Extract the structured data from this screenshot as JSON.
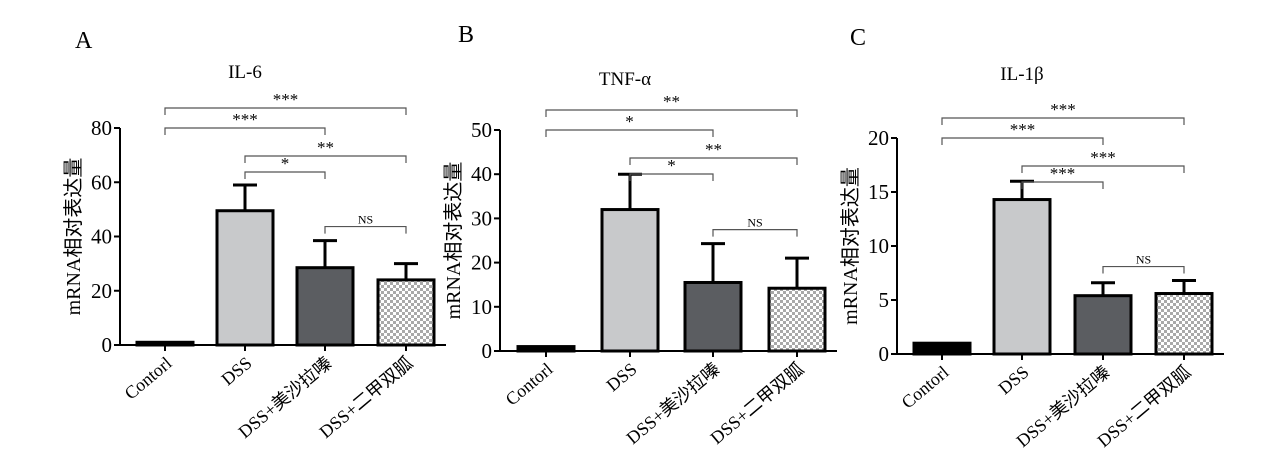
{
  "colors": {
    "control": "#000000",
    "dss": "#c8c9cb",
    "drug1": "#5b5d61",
    "drug2_a": "#bdbdbd",
    "drug2_b": "#ffffff",
    "stroke": "#000000",
    "bracket": "#555555"
  },
  "chart_data": [
    {
      "type": "bar",
      "panel_label": "A",
      "title": "IL-6",
      "ylabel": "mRNA相对表达量",
      "categories": [
        "Contorl",
        "DSS",
        "DSS+美沙拉嗪",
        "DSS+二甲双胍"
      ],
      "values": [
        1,
        49.5,
        28.5,
        24
      ],
      "error_upper": [
        1,
        59,
        38.5,
        30
      ],
      "ylim": [
        0,
        80
      ],
      "yticks": [
        0,
        20,
        40,
        60,
        80
      ],
      "significance": [
        {
          "from": 0,
          "to": 3,
          "label": "***",
          "level": 3
        },
        {
          "from": 0,
          "to": 2,
          "label": "***",
          "level": 2
        },
        {
          "from": 1,
          "to": 3,
          "label": "**",
          "level": 1
        },
        {
          "from": 1,
          "to": 2,
          "label": "*",
          "level": 0
        },
        {
          "from": 2,
          "to": 3,
          "label": "NS",
          "level": -1
        }
      ]
    },
    {
      "type": "bar",
      "panel_label": "B",
      "title": "TNF-α",
      "ylabel": "mRNA相对表达量",
      "categories": [
        "Contorl",
        "DSS",
        "DSS+美沙拉嗪",
        "DSS+二甲双胍"
      ],
      "values": [
        1,
        32,
        15.5,
        14.2
      ],
      "error_upper": [
        1,
        40,
        24.3,
        21
      ],
      "ylim": [
        0,
        50
      ],
      "yticks": [
        0,
        10,
        20,
        30,
        40,
        50
      ],
      "significance": [
        {
          "from": 0,
          "to": 3,
          "label": "**",
          "level": 3
        },
        {
          "from": 0,
          "to": 2,
          "label": "*",
          "level": 2
        },
        {
          "from": 1,
          "to": 3,
          "label": "**",
          "level": 1
        },
        {
          "from": 1,
          "to": 2,
          "label": "*",
          "level": 0
        },
        {
          "from": 2,
          "to": 3,
          "label": "NS",
          "level": -1
        }
      ]
    },
    {
      "type": "bar",
      "panel_label": "C",
      "title": "IL-1β",
      "ylabel": "mRNA相对表达量",
      "categories": [
        "Contorl",
        "DSS",
        "DSS+美沙拉嗪",
        "DSS+二甲双胍"
      ],
      "values": [
        1,
        14.3,
        5.4,
        5.6
      ],
      "error_upper": [
        1,
        16,
        6.6,
        6.8
      ],
      "ylim": [
        0,
        20
      ],
      "yticks": [
        0,
        5,
        10,
        15,
        20
      ],
      "significance": [
        {
          "from": 0,
          "to": 3,
          "label": "***",
          "level": 3
        },
        {
          "from": 0,
          "to": 2,
          "label": "***",
          "level": 2
        },
        {
          "from": 1,
          "to": 3,
          "label": "***",
          "level": 1
        },
        {
          "from": 1,
          "to": 2,
          "label": "***",
          "level": 0
        },
        {
          "from": 2,
          "to": 3,
          "label": "NS",
          "level": -1
        }
      ]
    }
  ]
}
